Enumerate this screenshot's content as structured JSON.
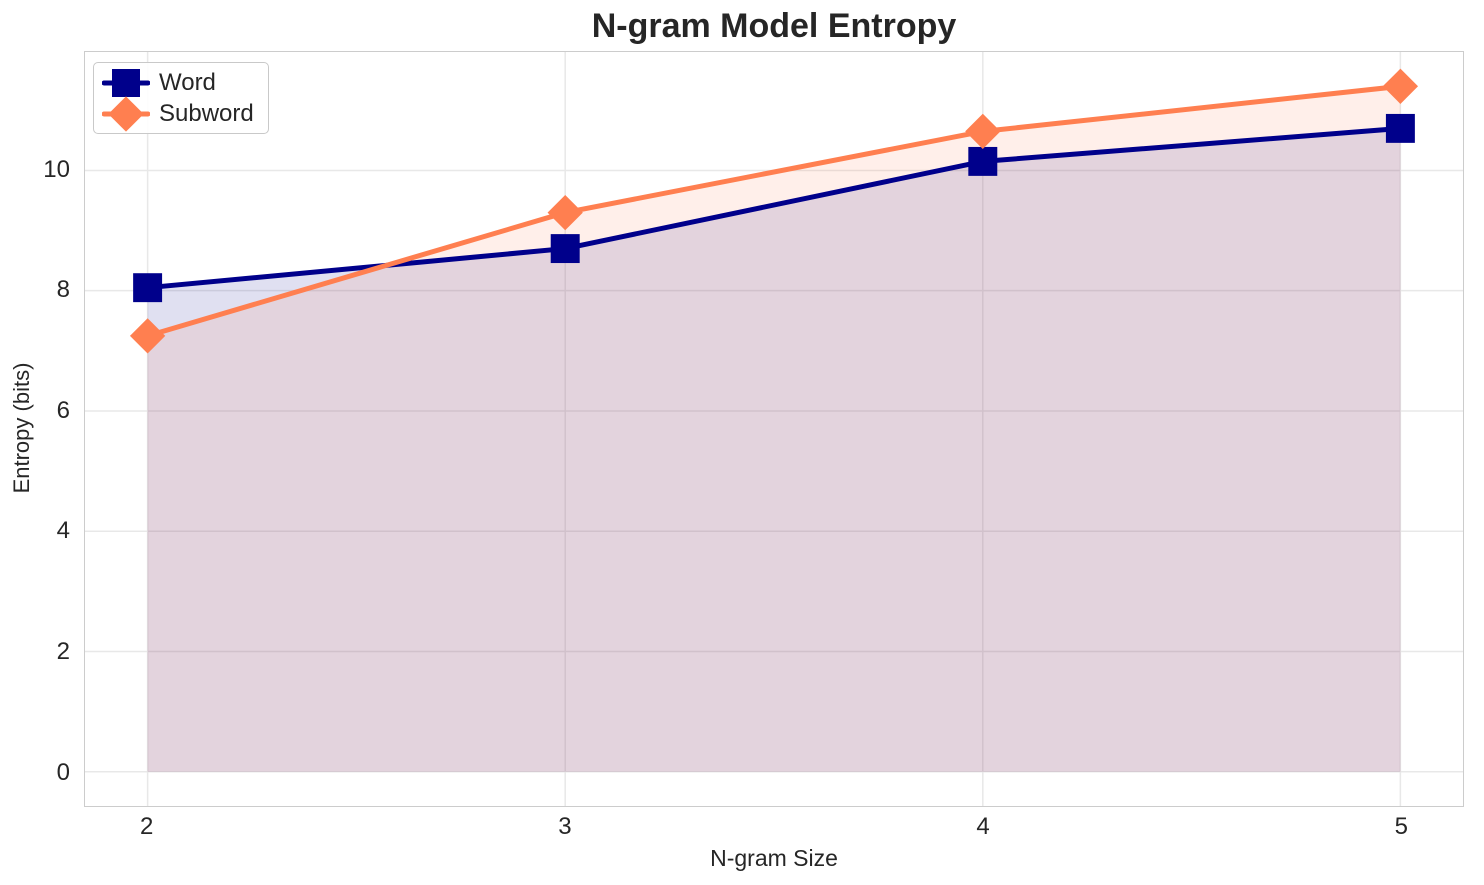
{
  "figure": {
    "background": "#ffffff",
    "text_color": "#262626",
    "title_color": "#262626"
  },
  "chart_data": {
    "type": "line",
    "title": "N-gram Model Entropy",
    "xlabel": "N-gram Size",
    "ylabel": "Entropy (bits)",
    "x": [
      2,
      3,
      4,
      5
    ],
    "series": [
      {
        "name": "Word",
        "values": [
          8.05,
          8.7,
          10.15,
          10.7
        ],
        "color": "#00008b",
        "marker": "square",
        "legend_icon": "square-marker-icon",
        "fill_to_zero": true,
        "fill_opacity": 0.12
      },
      {
        "name": "Subword",
        "values": [
          7.25,
          9.3,
          10.65,
          11.4
        ],
        "color": "#ff7f50",
        "marker": "diamond",
        "legend_icon": "diamond-marker-icon",
        "fill_to_zero": true,
        "fill_opacity": 0.12
      }
    ],
    "xticks": [
      2,
      3,
      4,
      5
    ],
    "yticks": [
      0,
      2,
      4,
      6,
      8,
      10
    ],
    "xlim": [
      1.85,
      5.15
    ],
    "ylim": [
      -0.57,
      11.97
    ],
    "grid": true,
    "grid_color": "#e8e8e8",
    "spine_color": "#cccccc",
    "line_width": 5,
    "legend_position": "upper-left"
  }
}
